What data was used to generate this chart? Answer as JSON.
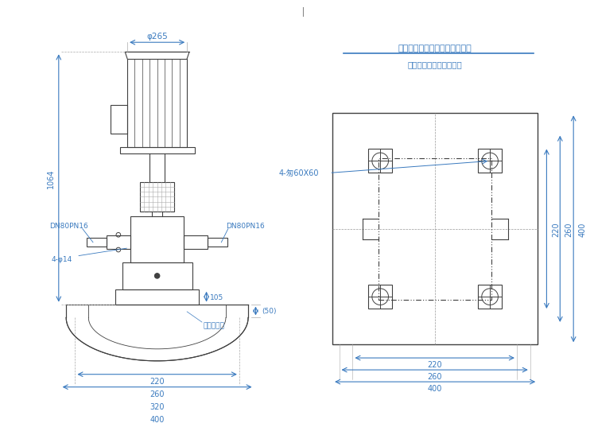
{
  "title_right_line1": "泵座孔位及混凝土基座地脚孔位",
  "title_right_line2": "双点划线表示泵底座位置",
  "dim_phi265": "φ265",
  "dim_1064": "1064",
  "dim_dn80pn16_left": "DN80PN16",
  "dim_dn80pn16_right": "DN80PN16",
  "dim_4phi14": "4-φ14",
  "dim_105": "105",
  "dim_220_base": "220",
  "dim_260_base": "260",
  "dim_320_base": "320",
  "dim_400_base": "400",
  "dim_50": "(50)",
  "dim_concrete": "混凝土基础",
  "right_label_4slot": "4-匆60X60",
  "right_dim_220": "220",
  "right_dim_260": "260",
  "right_dim_400": "400",
  "right_dim_220v": "220",
  "right_dim_260v": "260",
  "right_dim_400v": "400",
  "bg_color": "#ffffff",
  "line_color": "#404040",
  "dim_color": "#3a7abf",
  "text_color": "#404040",
  "hatch_color": "#555555"
}
